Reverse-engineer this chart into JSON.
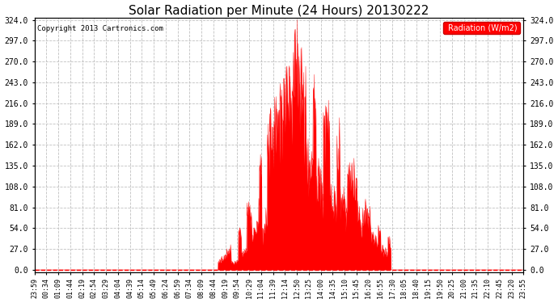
{
  "title": "Solar Radiation per Minute (24 Hours) 20130222",
  "copyright": "Copyright 2013 Cartronics.com",
  "legend_label": "Radiation (W/m2)",
  "bg_color": "#ffffff",
  "plot_bg_color": "#ffffff",
  "grid_color": "#c0c0c0",
  "bar_color": "#ff0000",
  "line_color": "#ff0000",
  "y_ticks": [
    0.0,
    27.0,
    54.0,
    81.0,
    108.0,
    135.0,
    162.0,
    189.0,
    216.0,
    243.0,
    270.0,
    297.0,
    324.0
  ],
  "y_min": -3,
  "y_max": 327,
  "x_tick_labels": [
    "23:59",
    "00:34",
    "01:09",
    "01:44",
    "02:19",
    "02:54",
    "03:29",
    "04:04",
    "04:39",
    "05:14",
    "05:49",
    "06:24",
    "06:59",
    "07:34",
    "08:09",
    "08:44",
    "09:19",
    "09:54",
    "10:29",
    "11:04",
    "11:39",
    "12:14",
    "12:50",
    "13:25",
    "14:00",
    "14:35",
    "15:10",
    "15:45",
    "16:20",
    "16:55",
    "17:30",
    "18:05",
    "18:40",
    "19:15",
    "19:50",
    "20:25",
    "21:00",
    "21:35",
    "22:10",
    "22:45",
    "23:20",
    "23:55"
  ],
  "peak_value": 324.0,
  "figsize": [
    6.9,
    3.75
  ],
  "dpi": 100
}
